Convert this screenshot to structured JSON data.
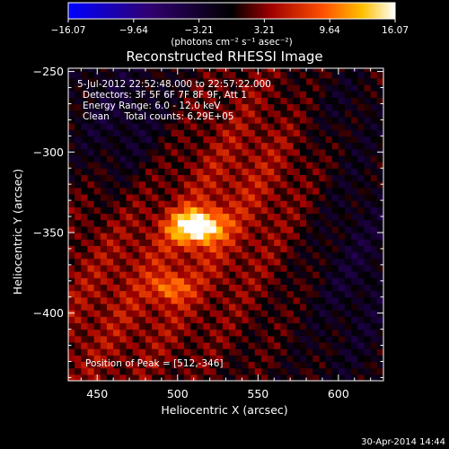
{
  "chart_data": {
    "type": "heatmap",
    "title": "Reconstructed RHESSI Image",
    "xlabel": "Heliocentric X (arcsec)",
    "ylabel": "Heliocentric Y (arcsec)",
    "xlim": [
      432,
      628
    ],
    "ylim": [
      -442,
      -248
    ],
    "x_ticks": [
      450,
      500,
      550,
      600
    ],
    "x_tick_labels": [
      "450",
      "500",
      "550",
      "600"
    ],
    "y_ticks": [
      -250,
      -300,
      -350,
      -400
    ],
    "y_tick_labels": [
      "−250",
      "−300",
      "−350",
      "−400"
    ],
    "colorbar": {
      "min": -16.07,
      "max": 16.07,
      "tick_labels": [
        "−16.07",
        "−9.64",
        "−3.21",
        "3.21",
        "9.64",
        "16.07"
      ],
      "units_label": "(photons cm⁻² s⁻¹ asec⁻²)"
    },
    "annotations": [
      "5-Jul-2012 22:52:48.000 to 22:57:22.000",
      "Detectors: 3F 5F 6F 7F 8F 9F, Att 1",
      "Energy Range: 6.0 - 12.0 keV",
      "Clean     Total counts: 6.29E+05"
    ],
    "peak_label": "Position of Peak = [512,-346]",
    "peak": {
      "x": 512,
      "y": -346,
      "value": 16.07
    },
    "sources": [
      {
        "x": 512,
        "y": -346,
        "value": 16.0,
        "sx": 11,
        "sy": 7
      },
      {
        "x": 496,
        "y": -384,
        "value": 6.5,
        "sx": 8,
        "sy": 6
      }
    ],
    "timestamp": "30-Apr-2014 14:44"
  }
}
